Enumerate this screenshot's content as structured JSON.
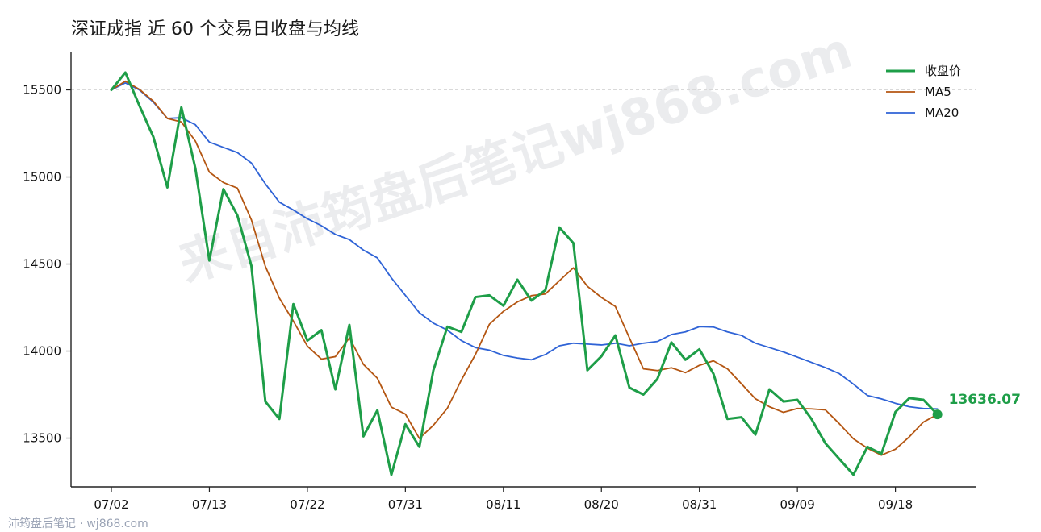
{
  "title": "深证成指 近 60 个交易日收盘与均线",
  "watermark_text": "来自沛筠盘后笔记wj868.com",
  "footer_text": "沛筠盘后笔记 · wj868.com",
  "chart_data": {
    "type": "line",
    "title": "深证成指 近 60 个交易日收盘与均线",
    "xlabel": "",
    "ylabel": "",
    "ylim": [
      13220,
      15720
    ],
    "yticks": [
      13500,
      14000,
      14500,
      15000,
      15500
    ],
    "grid": true,
    "legend_position": "top-right",
    "x_tick_labels": [
      {
        "index": 0,
        "label": "07/02"
      },
      {
        "index": 7,
        "label": "07/13"
      },
      {
        "index": 14,
        "label": "07/22"
      },
      {
        "index": 21,
        "label": "07/31"
      },
      {
        "index": 28,
        "label": "08/11"
      },
      {
        "index": 35,
        "label": "08/20"
      },
      {
        "index": 42,
        "label": "08/31"
      },
      {
        "index": 49,
        "label": "09/09"
      },
      {
        "index": 56,
        "label": "09/18"
      }
    ],
    "last_value_label": "13636.07",
    "series": [
      {
        "name": "收盘价",
        "color": "#1e9e48",
        "values": [
          15500,
          15600,
          15410,
          15230,
          14940,
          15400,
          15050,
          14520,
          14930,
          14780,
          14490,
          13710,
          13610,
          14270,
          14060,
          14120,
          13780,
          14150,
          13510,
          13660,
          13290,
          13580,
          13450,
          13890,
          14140,
          14110,
          14310,
          14320,
          14260,
          14410,
          14290,
          14350,
          14710,
          14620,
          13890,
          13970,
          14090,
          13790,
          13750,
          13840,
          14050,
          13950,
          14010,
          13870,
          13610,
          13620,
          13520,
          13780,
          13710,
          13720,
          13610,
          13470,
          13380,
          13290,
          13450,
          13410,
          13650,
          13730,
          13720,
          13636.07
        ]
      },
      {
        "name": "MA5",
        "color": "#b45612",
        "values": [
          15500,
          15550,
          15503,
          15435,
          15336,
          15316,
          15206,
          15028,
          14968,
          14936,
          14754,
          14486,
          14304,
          14172,
          14028,
          13954,
          13968,
          14076,
          13924,
          13844,
          13678,
          13638,
          13498,
          13574,
          13672,
          13834,
          13980,
          14154,
          14228,
          14282,
          14318,
          14328,
          14404,
          14478,
          14372,
          14308,
          14256,
          14076,
          13898,
          13888,
          13904,
          13876,
          13918,
          13944,
          13898,
          13812,
          13726,
          13680,
          13648,
          13670,
          13668,
          13662,
          13582,
          13496,
          13442,
          13402,
          13436,
          13508,
          13592,
          13636
        ]
      },
      {
        "name": "MA20",
        "color": "#2f63d6",
        "values": [
          15500,
          15540,
          15500,
          15430,
          15336,
          15340,
          15300,
          15200,
          15170,
          15140,
          15080,
          14960,
          14855,
          14810,
          14760,
          14720,
          14670,
          14640,
          14580,
          14535,
          14420,
          14320,
          14220,
          14160,
          14120,
          14060,
          14020,
          14005,
          13975,
          13960,
          13950,
          13980,
          14030,
          14045,
          14040,
          14035,
          14045,
          14030,
          14045,
          14055,
          14095,
          14110,
          14140,
          14138,
          14110,
          14090,
          14045,
          14020,
          13995,
          13965,
          13935,
          13905,
          13870,
          13810,
          13745,
          13725,
          13700,
          13680,
          13670,
          13668
        ]
      }
    ]
  }
}
